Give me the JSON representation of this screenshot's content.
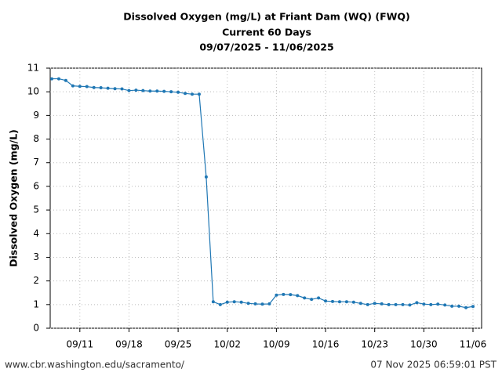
{
  "chart_data": {
    "type": "line",
    "title": [
      "Dissolved Oxygen (mg/L) at Friant Dam (WQ) (FWQ)",
      "Current 60 Days",
      "09/07/2025 - 11/06/2025"
    ],
    "y_label": "Dissolved Oxygen (mg/L)",
    "x": [
      "09/07",
      "09/08",
      "09/09",
      "09/10",
      "09/11",
      "09/12",
      "09/13",
      "09/14",
      "09/15",
      "09/16",
      "09/17",
      "09/18",
      "09/19",
      "09/20",
      "09/21",
      "09/22",
      "09/23",
      "09/24",
      "09/25",
      "09/26",
      "09/27",
      "09/28",
      "09/29",
      "09/30",
      "10/01",
      "10/02",
      "10/03",
      "10/04",
      "10/05",
      "10/06",
      "10/07",
      "10/08",
      "10/09",
      "10/10",
      "10/11",
      "10/12",
      "10/13",
      "10/14",
      "10/15",
      "10/16",
      "10/17",
      "10/18",
      "10/19",
      "10/20",
      "10/21",
      "10/22",
      "10/23",
      "10/24",
      "10/25",
      "10/26",
      "10/27",
      "10/28",
      "10/29",
      "10/30",
      "10/31",
      "11/01",
      "11/02",
      "11/03",
      "11/04",
      "11/05",
      "11/06"
    ],
    "values": [
      10.55,
      10.55,
      10.48,
      10.25,
      10.23,
      10.22,
      10.18,
      10.17,
      10.15,
      10.13,
      10.12,
      10.05,
      10.07,
      10.05,
      10.03,
      10.03,
      10.02,
      10.0,
      9.98,
      9.93,
      9.9,
      9.9,
      6.4,
      1.12,
      1.0,
      1.1,
      1.12,
      1.1,
      1.05,
      1.03,
      1.02,
      1.03,
      1.4,
      1.43,
      1.42,
      1.38,
      1.28,
      1.22,
      1.28,
      1.15,
      1.13,
      1.12,
      1.12,
      1.1,
      1.05,
      1.0,
      1.05,
      1.03,
      1.0,
      1.0,
      1.0,
      0.98,
      1.08,
      1.02,
      1.0,
      1.02,
      0.98,
      0.93,
      0.93,
      0.87,
      0.92
    ],
    "color": "#1f77b4",
    "xticks": [
      "09/11",
      "09/18",
      "09/25",
      "10/02",
      "10/09",
      "10/16",
      "10/23",
      "10/30",
      "11/06"
    ],
    "ylim": [
      0,
      11
    ],
    "yticks": [
      0,
      1,
      2,
      3,
      4,
      5,
      6,
      7,
      8,
      9,
      10,
      11
    ],
    "grid": true,
    "footer_left": "www.cbr.washington.edu/sacramento/",
    "footer_right": "07 Nov 2025 06:59:01 PST"
  }
}
